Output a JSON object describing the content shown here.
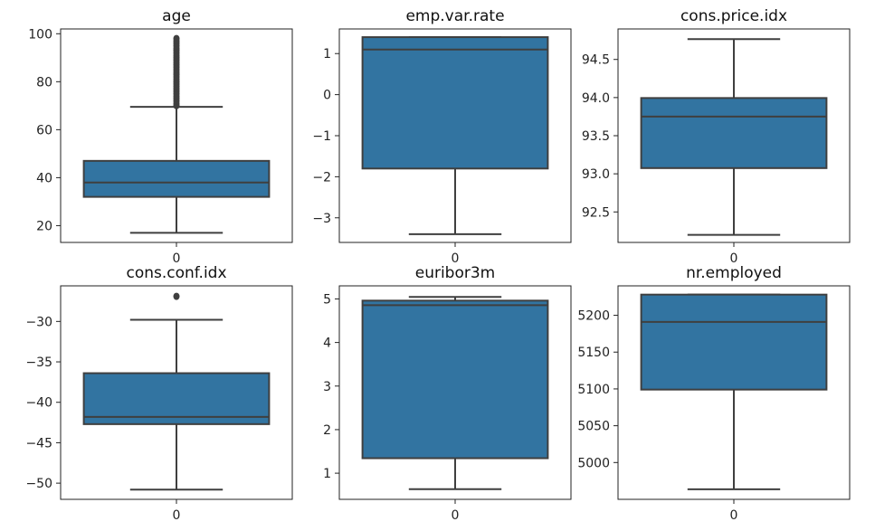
{
  "chart_data": [
    {
      "type": "box",
      "title": "age",
      "categories": [
        "0"
      ],
      "ylim": [
        13,
        102
      ],
      "yticks": [
        20,
        40,
        60,
        80,
        100
      ],
      "ytick_labels": [
        "20",
        "40",
        "60",
        "80",
        "100"
      ],
      "box": {
        "min": 17,
        "q1": 32,
        "median": 38,
        "q3": 47,
        "max": 69.5
      },
      "outliers": [
        70,
        71,
        72,
        73,
        74,
        75,
        76,
        77,
        78,
        79,
        80,
        81,
        82,
        83,
        84,
        85,
        86,
        87,
        88,
        89,
        90,
        91,
        92,
        93,
        94,
        95,
        96,
        97,
        98
      ]
    },
    {
      "type": "box",
      "title": "emp.var.rate",
      "categories": [
        "0"
      ],
      "ylim": [
        -3.6,
        1.6
      ],
      "yticks": [
        -3,
        -2,
        -1,
        0,
        1
      ],
      "ytick_labels": [
        "−3",
        "−2",
        "−1",
        "0",
        "1"
      ],
      "box": {
        "min": -3.4,
        "q1": -1.8,
        "median": 1.1,
        "q3": 1.4,
        "max": 1.4
      },
      "outliers": []
    },
    {
      "type": "box",
      "title": "cons.price.idx",
      "categories": [
        "0"
      ],
      "ylim": [
        92.1,
        94.9
      ],
      "yticks": [
        92.5,
        93.0,
        93.5,
        94.0,
        94.5
      ],
      "ytick_labels": [
        "92.5",
        "93.0",
        "93.5",
        "94.0",
        "94.5"
      ],
      "box": {
        "min": 92.2,
        "q1": 93.075,
        "median": 93.75,
        "q3": 93.994,
        "max": 94.767
      },
      "outliers": []
    },
    {
      "type": "box",
      "title": "cons.conf.idx",
      "categories": [
        "0"
      ],
      "ylim": [
        -52,
        -25.6
      ],
      "yticks": [
        -50,
        -45,
        -40,
        -35,
        -30
      ],
      "ytick_labels": [
        "−50",
        "−45",
        "−40",
        "−35",
        "−30"
      ],
      "box": {
        "min": -50.8,
        "q1": -42.7,
        "median": -41.8,
        "q3": -36.4,
        "max": -29.8
      },
      "outliers": [
        -26.9
      ]
    },
    {
      "type": "box",
      "title": "euribor3m",
      "categories": [
        "0"
      ],
      "ylim": [
        0.4,
        5.3
      ],
      "yticks": [
        1,
        2,
        3,
        4,
        5
      ],
      "ytick_labels": [
        "1",
        "2",
        "3",
        "4",
        "5"
      ],
      "box": {
        "min": 0.634,
        "q1": 1.344,
        "median": 4.857,
        "q3": 4.961,
        "max": 5.045
      },
      "outliers": []
    },
    {
      "type": "box",
      "title": "nr.employed",
      "categories": [
        "0"
      ],
      "ylim": [
        4950,
        5240
      ],
      "yticks": [
        5000,
        5050,
        5100,
        5150,
        5200
      ],
      "ytick_labels": [
        "5000",
        "5050",
        "5100",
        "5150",
        "5200"
      ],
      "box": {
        "min": 4963.6,
        "q1": 5099.1,
        "median": 5191,
        "q3": 5228.1,
        "max": 5228.1
      },
      "outliers": []
    }
  ],
  "colors": {
    "box_fill": "#3274a1",
    "line": "#3f3f3f",
    "axis": "#222222"
  }
}
